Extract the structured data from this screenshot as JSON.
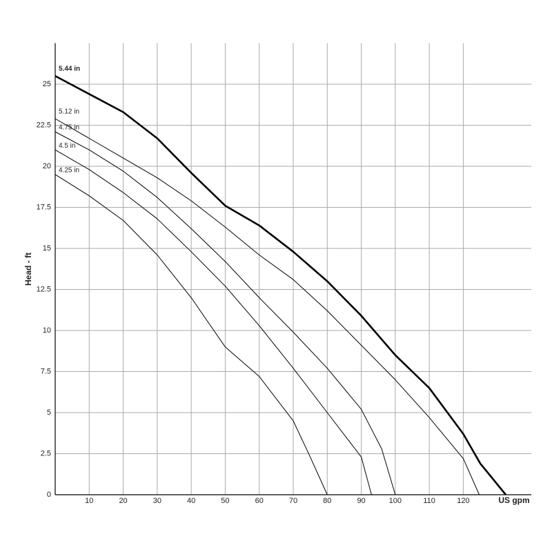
{
  "chart_data": {
    "type": "line",
    "x_label": "US gpm",
    "y_label": "Head - ft",
    "xlim": [
      0,
      140
    ],
    "ylim": [
      0,
      27.5
    ],
    "xticks": [
      10,
      20,
      30,
      40,
      50,
      60,
      70,
      80,
      90,
      100,
      110,
      120
    ],
    "yticks": [
      0,
      2.5,
      5,
      7.5,
      10,
      12.5,
      15,
      17.5,
      20,
      22.5,
      25
    ],
    "grid": true,
    "series": [
      {
        "name": "5.44 in",
        "color": "#000000",
        "width": 2.6,
        "x": [
          0,
          10,
          20,
          30,
          40,
          50,
          60,
          70,
          80,
          90,
          100,
          110,
          120,
          125,
          132.5
        ],
        "values": [
          25.5,
          24.4,
          23.3,
          21.7,
          19.6,
          17.6,
          16.4,
          14.8,
          13,
          10.9,
          8.5,
          6.5,
          3.7,
          1.9,
          0
        ]
      },
      {
        "name": "5.12 in",
        "color": "#000000",
        "width": 1,
        "x": [
          0,
          10,
          20,
          30,
          40,
          50,
          60,
          70,
          80,
          90,
          100,
          110,
          120,
          124.7
        ],
        "values": [
          22.9,
          21.7,
          20.5,
          19.3,
          17.9,
          16.3,
          14.6,
          13.1,
          11.2,
          9.1,
          7,
          4.7,
          2.2,
          0
        ]
      },
      {
        "name": "4.75 in",
        "color": "#000000",
        "width": 1,
        "x": [
          0,
          10,
          20,
          30,
          40,
          50,
          60,
          70,
          80,
          90,
          96,
          100
        ],
        "values": [
          22.1,
          21,
          19.7,
          18.1,
          16.2,
          14.2,
          12,
          9.9,
          7.7,
          5.2,
          2.8,
          0
        ]
      },
      {
        "name": "4.5 in",
        "color": "#000000",
        "width": 1,
        "x": [
          0,
          10,
          20,
          30,
          40,
          50,
          60,
          70,
          80,
          90,
          93
        ],
        "values": [
          21,
          19.8,
          18.4,
          16.8,
          14.8,
          12.7,
          10.3,
          7.7,
          5,
          2.3,
          0
        ]
      },
      {
        "name": "4.25 in",
        "color": "#000000",
        "width": 1,
        "x": [
          0,
          10,
          20,
          30,
          40,
          50,
          60,
          70,
          75,
          80
        ],
        "values": [
          19.5,
          18.2,
          16.7,
          14.6,
          12,
          9,
          7.2,
          4.5,
          2.3,
          0
        ]
      }
    ]
  }
}
